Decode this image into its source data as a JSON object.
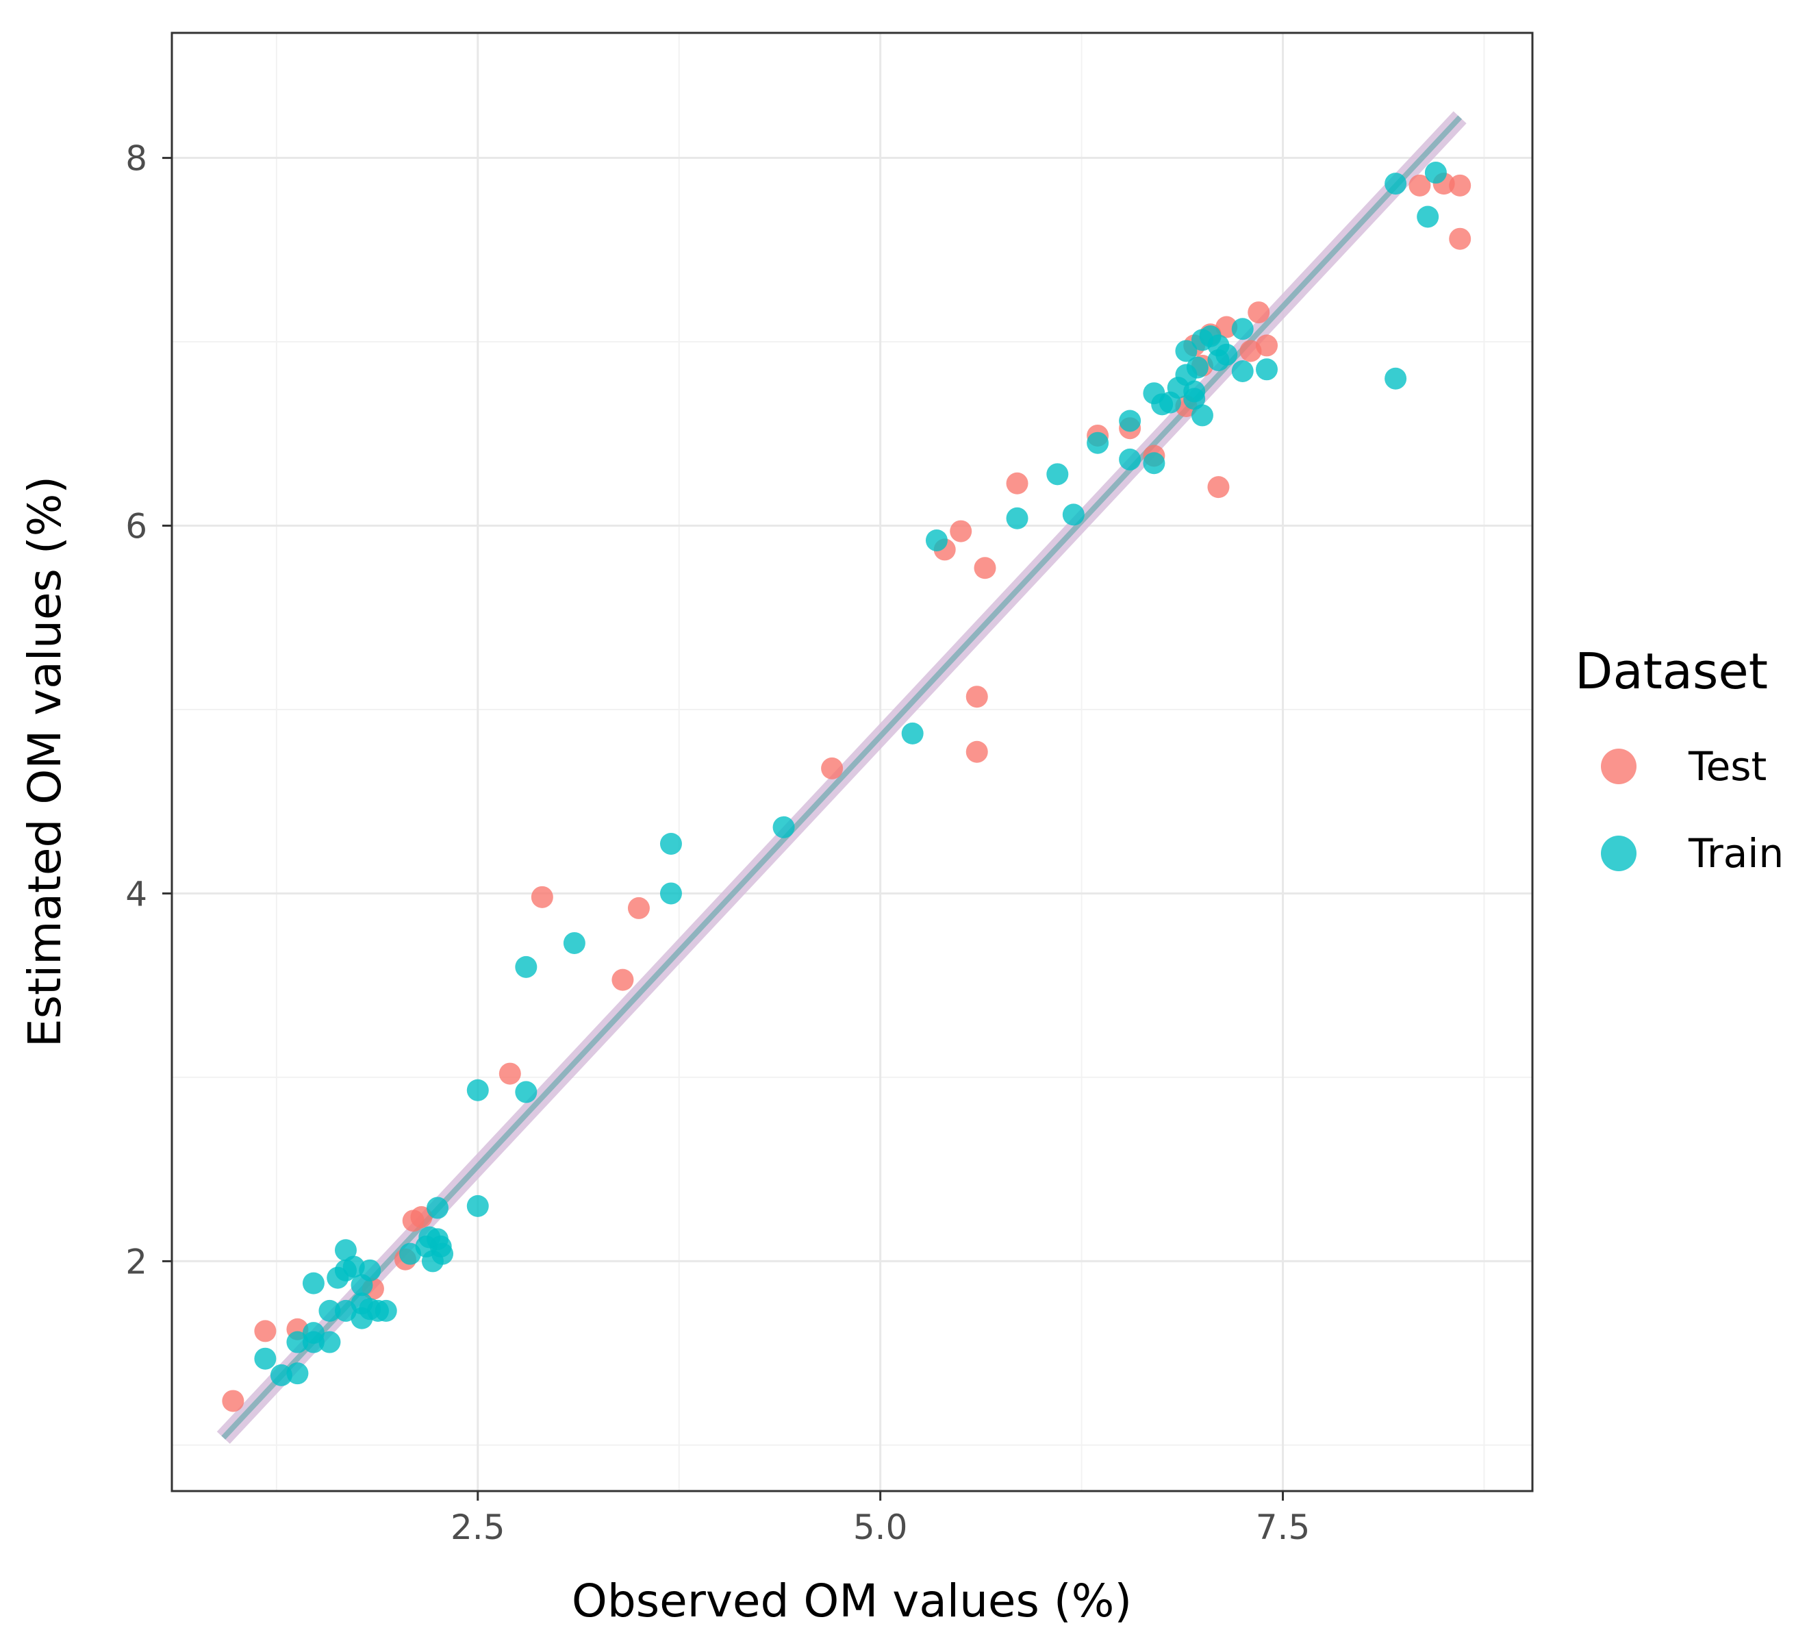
{
  "chart_data": {
    "type": "scatter",
    "title": "",
    "xlabel": "Observed OM values (%)",
    "ylabel": "Estimated OM values (%)",
    "xlim": [
      0.6,
      9.05
    ],
    "ylim": [
      0.75,
      8.68
    ],
    "x_ticks": [
      2.5,
      5.0,
      7.5
    ],
    "x_tick_labels": [
      "2.5",
      "5.0",
      "7.5"
    ],
    "x_minor_ticks": [
      1.25,
      3.75,
      6.25,
      8.75
    ],
    "y_ticks": [
      2,
      4,
      6,
      8
    ],
    "y_tick_labels": [
      "2",
      "4",
      "6",
      "8"
    ],
    "y_minor_ticks": [
      1,
      3,
      5,
      7
    ],
    "grid": true,
    "legend": {
      "title": "Dataset",
      "position": "right"
    },
    "fit_line": {
      "x_range": [
        0.92,
        8.6
      ],
      "intercept": 0.18,
      "slope": 0.935,
      "color": "#8fb3be",
      "band_color": "#d8c0dc"
    },
    "series": [
      {
        "name": "Test",
        "color": "#f8766d",
        "points": [
          [
            0.98,
            1.24
          ],
          [
            1.18,
            1.62
          ],
          [
            1.38,
            1.63
          ],
          [
            1.85,
            1.85
          ],
          [
            2.05,
            2.01
          ],
          [
            2.1,
            2.22
          ],
          [
            2.15,
            2.24
          ],
          [
            2.7,
            3.02
          ],
          [
            2.9,
            3.98
          ],
          [
            3.4,
            3.53
          ],
          [
            3.5,
            3.92
          ],
          [
            4.7,
            4.68
          ],
          [
            5.4,
            5.87
          ],
          [
            5.5,
            5.97
          ],
          [
            5.6,
            5.07
          ],
          [
            5.6,
            4.77
          ],
          [
            5.65,
            5.77
          ],
          [
            5.85,
            6.23
          ],
          [
            6.35,
            6.49
          ],
          [
            6.55,
            6.53
          ],
          [
            6.7,
            6.38
          ],
          [
            6.9,
            6.65
          ],
          [
            6.95,
            6.98
          ],
          [
            7.0,
            6.87
          ],
          [
            7.05,
            7.04
          ],
          [
            7.1,
            6.21
          ],
          [
            7.15,
            7.08
          ],
          [
            7.3,
            6.95
          ],
          [
            7.35,
            7.16
          ],
          [
            7.4,
            6.98
          ],
          [
            8.35,
            7.85
          ],
          [
            8.5,
            7.86
          ],
          [
            8.6,
            7.85
          ],
          [
            8.6,
            7.56
          ]
        ]
      },
      {
        "name": "Train",
        "color": "#00bfc4",
        "points": [
          [
            1.18,
            1.47
          ],
          [
            1.28,
            1.38
          ],
          [
            1.38,
            1.39
          ],
          [
            1.38,
            1.56
          ],
          [
            1.48,
            1.56
          ],
          [
            1.48,
            1.61
          ],
          [
            1.48,
            1.88
          ],
          [
            1.58,
            1.56
          ],
          [
            1.58,
            1.73
          ],
          [
            1.63,
            1.91
          ],
          [
            1.68,
            2.06
          ],
          [
            1.68,
            1.73
          ],
          [
            1.68,
            1.95
          ],
          [
            1.73,
            1.97
          ],
          [
            1.78,
            1.77
          ],
          [
            1.78,
            1.69
          ],
          [
            1.78,
            1.87
          ],
          [
            1.83,
            1.95
          ],
          [
            1.83,
            1.74
          ],
          [
            1.88,
            1.73
          ],
          [
            1.93,
            1.73
          ],
          [
            2.08,
            2.04
          ],
          [
            2.18,
            2.08
          ],
          [
            2.2,
            2.13
          ],
          [
            2.22,
            2.0
          ],
          [
            2.25,
            2.12
          ],
          [
            2.25,
            2.29
          ],
          [
            2.27,
            2.08
          ],
          [
            2.28,
            2.04
          ],
          [
            2.5,
            2.3
          ],
          [
            2.5,
            2.93
          ],
          [
            2.8,
            2.92
          ],
          [
            2.8,
            3.6
          ],
          [
            3.1,
            3.73
          ],
          [
            3.7,
            4.0
          ],
          [
            3.7,
            4.27
          ],
          [
            4.4,
            4.36
          ],
          [
            5.2,
            4.87
          ],
          [
            5.35,
            5.92
          ],
          [
            5.85,
            6.04
          ],
          [
            6.1,
            6.28
          ],
          [
            6.2,
            6.06
          ],
          [
            6.35,
            6.45
          ],
          [
            6.55,
            6.36
          ],
          [
            6.55,
            6.57
          ],
          [
            6.7,
            6.34
          ],
          [
            6.7,
            6.72
          ],
          [
            6.75,
            6.66
          ],
          [
            6.8,
            6.67
          ],
          [
            6.85,
            6.75
          ],
          [
            6.9,
            6.82
          ],
          [
            6.9,
            6.95
          ],
          [
            6.95,
            6.69
          ],
          [
            6.95,
            6.73
          ],
          [
            6.97,
            6.86
          ],
          [
            7.0,
            7.01
          ],
          [
            7.0,
            6.6
          ],
          [
            7.05,
            7.03
          ],
          [
            7.1,
            6.9
          ],
          [
            7.1,
            6.98
          ],
          [
            7.15,
            6.93
          ],
          [
            7.25,
            6.84
          ],
          [
            7.25,
            7.07
          ],
          [
            7.4,
            6.85
          ],
          [
            8.2,
            7.86
          ],
          [
            8.2,
            6.8
          ],
          [
            8.4,
            7.68
          ],
          [
            8.45,
            7.92
          ]
        ]
      }
    ]
  }
}
